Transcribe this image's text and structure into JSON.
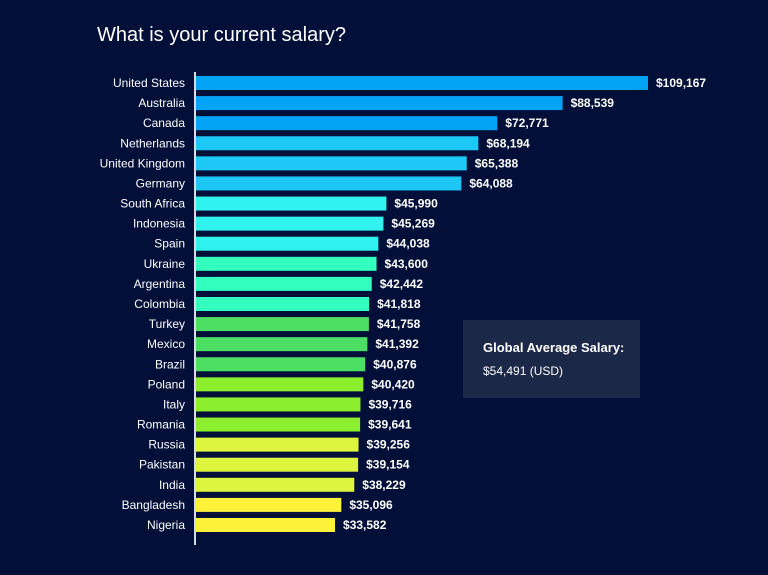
{
  "chart_data": {
    "type": "bar",
    "orientation": "horizontal",
    "title": "What is your current salary?",
    "xlabel": "",
    "ylabel": "",
    "xlim": [
      0,
      109167
    ],
    "grid": false,
    "categories": [
      "United States",
      "Australia",
      "Canada",
      "Netherlands",
      "United Kingdom",
      "Germany",
      "South Africa",
      "Indonesia",
      "Spain",
      "Ukraine",
      "Argentina",
      "Colombia",
      "Turkey",
      "Mexico",
      "Brazil",
      "Poland",
      "Italy",
      "Romania",
      "Russia",
      "Pakistan",
      "India",
      "Bangladesh",
      "Nigeria"
    ],
    "values": [
      109167,
      88539,
      72771,
      68194,
      65388,
      64088,
      45990,
      45269,
      44038,
      43600,
      42442,
      41818,
      41758,
      41392,
      40876,
      40420,
      39716,
      39641,
      39256,
      39154,
      38229,
      35096,
      33582
    ],
    "labels": [
      "$109,167",
      "$88,539",
      "$72,771",
      "$68,194",
      "$65,388",
      "$64,088",
      "$45,990",
      "$45,269",
      "$44,038",
      "$43,600",
      "$42,442",
      "$41,818",
      "$41,758",
      "$41,392",
      "$40,876",
      "$40,420",
      "$39,716",
      "$39,641",
      "$39,256",
      "$39,154",
      "$38,229",
      "$35,096",
      "$33,582"
    ],
    "colors": [
      "#03a4f6",
      "#03a4f6",
      "#03a4f6",
      "#1ec8f6",
      "#1ec8f6",
      "#1ec8f6",
      "#30f2ee",
      "#30f2ee",
      "#30f2ee",
      "#33ffbf",
      "#33ffbf",
      "#33ffbf",
      "#4cdf64",
      "#4cdf64",
      "#4cdf64",
      "#8cef2d",
      "#8cef2d",
      "#8cef2d",
      "#ddf53e",
      "#ddf53e",
      "#ddf53e",
      "#fff23b",
      "#fff23b"
    ],
    "annotation": {
      "title": "Global Average Salary:",
      "value": "$54,491 (USD)"
    }
  }
}
